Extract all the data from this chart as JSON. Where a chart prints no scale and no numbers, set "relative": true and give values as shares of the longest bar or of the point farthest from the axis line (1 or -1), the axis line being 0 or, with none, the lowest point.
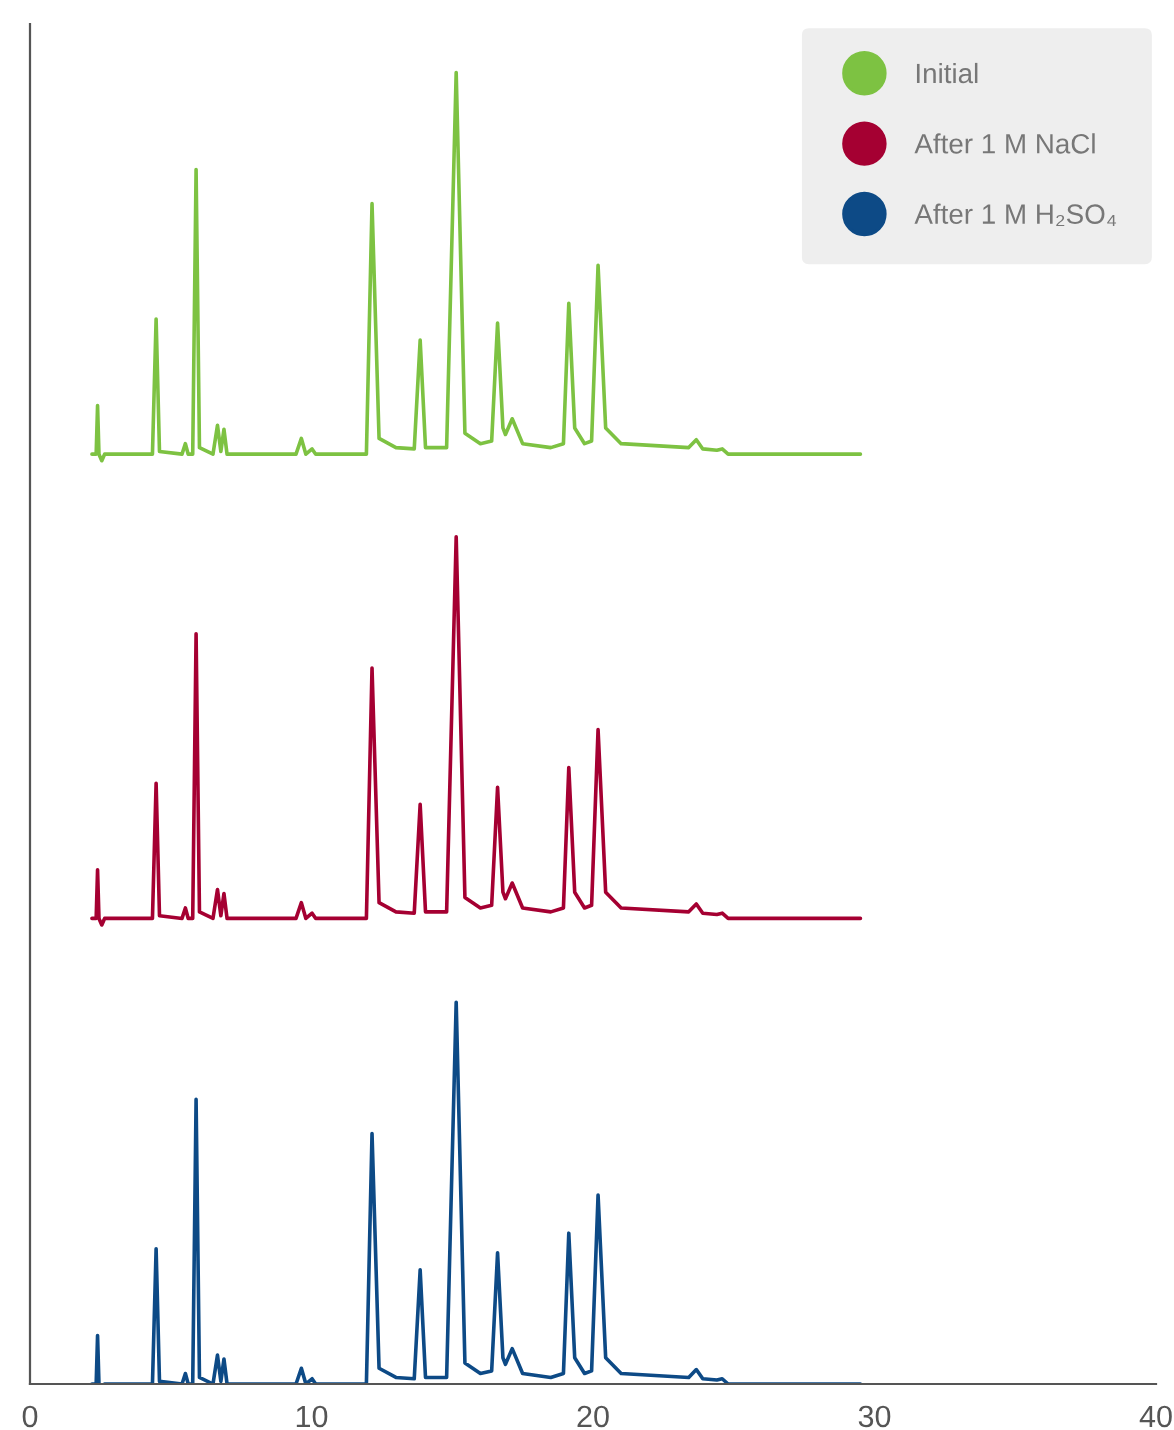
{
  "chart_data": {
    "type": "line",
    "relative": true,
    "legend": "top right",
    "grid": false,
    "x": [
      2.2,
      2.35,
      2.4,
      2.45,
      2.55,
      2.65,
      4.35,
      4.48,
      4.6,
      5.4,
      5.52,
      5.62,
      5.78,
      5.9,
      6.02,
      6.5,
      6.66,
      6.78,
      6.89,
      7.0,
      9.45,
      9.64,
      9.8,
      10.02,
      10.15,
      11.95,
      12.15,
      12.4,
      13.0,
      13.65,
      13.86,
      14.05,
      14.8,
      15.14,
      15.45,
      16.0,
      16.4,
      16.61,
      16.8,
      16.89,
      17.13,
      17.5,
      18.5,
      18.95,
      19.14,
      19.35,
      19.7,
      19.95,
      20.18,
      20.45,
      21.0,
      23.4,
      23.67,
      23.9,
      24.4,
      24.59,
      24.8,
      29.5
    ],
    "xlim": [
      0,
      40
    ],
    "xticks": [
      0,
      10,
      20,
      30,
      40
    ],
    "tick_labels": "x",
    "series": [
      {
        "name": "Initial",
        "color": "#7dc242",
        "values": [
          0.709,
          0.709,
          0.746,
          0.709,
          0.704,
          0.709,
          0.709,
          0.812,
          0.711,
          0.709,
          0.717,
          0.709,
          0.709,
          0.926,
          0.714,
          0.709,
          0.731,
          0.711,
          0.728,
          0.709,
          0.709,
          0.721,
          0.709,
          0.713,
          0.709,
          0.709,
          0.9,
          0.721,
          0.714,
          0.713,
          0.796,
          0.714,
          0.714,
          1.0,
          0.725,
          0.717,
          0.719,
          0.809,
          0.729,
          0.724,
          0.736,
          0.717,
          0.714,
          0.717,
          0.824,
          0.729,
          0.717,
          0.719,
          0.853,
          0.729,
          0.717,
          0.714,
          0.72,
          0.713,
          0.712,
          0.713,
          0.709,
          0.709
        ]
      },
      {
        "name": "After 1 M NaCl",
        "color": "#a50032",
        "values": [
          0.355,
          0.355,
          0.392,
          0.355,
          0.35,
          0.355,
          0.355,
          0.458,
          0.357,
          0.355,
          0.363,
          0.355,
          0.355,
          0.572,
          0.36,
          0.355,
          0.377,
          0.357,
          0.374,
          0.355,
          0.355,
          0.367,
          0.355,
          0.359,
          0.355,
          0.355,
          0.546,
          0.367,
          0.36,
          0.359,
          0.442,
          0.36,
          0.36,
          0.646,
          0.371,
          0.363,
          0.365,
          0.455,
          0.375,
          0.37,
          0.382,
          0.363,
          0.36,
          0.363,
          0.47,
          0.375,
          0.363,
          0.365,
          0.499,
          0.375,
          0.363,
          0.36,
          0.366,
          0.359,
          0.358,
          0.359,
          0.355,
          0.355
        ]
      },
      {
        "name": "After 1 M H₂SO₄",
        "color": "#0d4a86",
        "values": [
          0,
          0,
          0.037,
          0,
          -0.005,
          0,
          0,
          0.103,
          0.002,
          0,
          0.008,
          0,
          0,
          0.217,
          0.005,
          0,
          0.022,
          0.002,
          0.019,
          0,
          0,
          0.012,
          0,
          0.004,
          0,
          0,
          0.191,
          0.012,
          0.005,
          0.004,
          0.087,
          0.005,
          0.005,
          0.291,
          0.016,
          0.008,
          0.01,
          0.1,
          0.02,
          0.015,
          0.027,
          0.008,
          0.005,
          0.008,
          0.115,
          0.02,
          0.008,
          0.01,
          0.144,
          0.02,
          0.008,
          0.005,
          0.011,
          0.004,
          0.003,
          0.004,
          0,
          0
        ]
      }
    ]
  }
}
